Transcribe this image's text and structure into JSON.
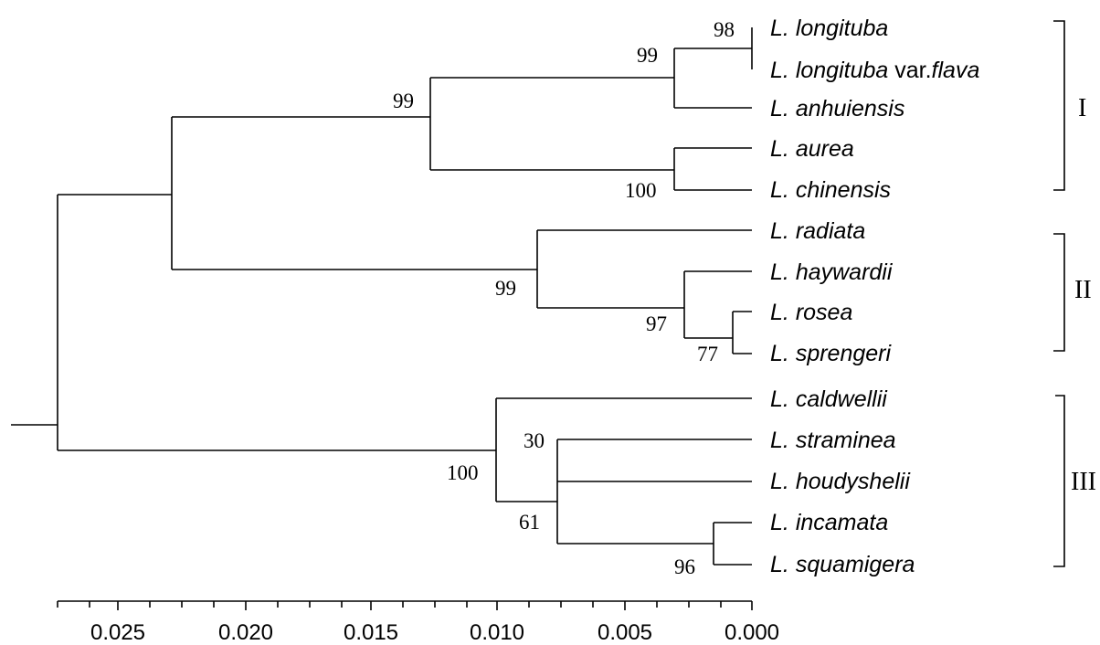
{
  "taxa": [
    {
      "id": "longituba",
      "genus": "L.",
      "epithet": "longituba",
      "suffix": "",
      "tail": ""
    },
    {
      "id": "longituba_flava",
      "genus": "L.",
      "epithet": "longituba",
      "suffix": " var.",
      "tail": "flava"
    },
    {
      "id": "anhuiensis",
      "genus": "L.",
      "epithet": "anhuiensis",
      "suffix": "",
      "tail": ""
    },
    {
      "id": "aurea",
      "genus": "L.",
      "epithet": "aurea",
      "suffix": "",
      "tail": ""
    },
    {
      "id": "chinensis",
      "genus": "L.",
      "epithet": "chinensis",
      "suffix": "",
      "tail": ""
    },
    {
      "id": "radiata",
      "genus": "L.",
      "epithet": "radiata",
      "suffix": "",
      "tail": ""
    },
    {
      "id": "haywardii",
      "genus": "L.",
      "epithet": "haywardii",
      "suffix": "",
      "tail": ""
    },
    {
      "id": "rosea",
      "genus": "L.",
      "epithet": "rosea",
      "suffix": "",
      "tail": ""
    },
    {
      "id": "sprengeri",
      "genus": "L.",
      "epithet": "sprengeri",
      "suffix": "",
      "tail": ""
    },
    {
      "id": "caldwellii",
      "genus": "L.",
      "epithet": "caldwellii",
      "suffix": "",
      "tail": ""
    },
    {
      "id": "straminea",
      "genus": "L.",
      "epithet": "straminea",
      "suffix": "",
      "tail": ""
    },
    {
      "id": "houdyshelii",
      "genus": "L.",
      "epithet": "houdyshelii",
      "suffix": "",
      "tail": ""
    },
    {
      "id": "incamata",
      "genus": "L.",
      "epithet": "incamata",
      "suffix": "",
      "tail": ""
    },
    {
      "id": "squamigera",
      "genus": "L.",
      "epithet": "squamigera",
      "suffix": "",
      "tail": ""
    }
  ],
  "bootstrap": {
    "longituba_pair": "98",
    "longituba_anhuiensis": "99",
    "clade_I": "99",
    "aurea_chinensis": "100",
    "clade_II": "99",
    "haywardii_group": "97",
    "rosea_sprengeri": "77",
    "clade_III": "100",
    "straminea_houdyshelii": "30",
    "straminea_group": "61",
    "incamata_squamigera": "96"
  },
  "clades": [
    {
      "id": "I",
      "label": "I"
    },
    {
      "id": "II",
      "label": "II"
    },
    {
      "id": "III",
      "label": "III"
    }
  ],
  "scale_axis": {
    "ticks": [
      "0.025",
      "0.020",
      "0.015",
      "0.010",
      "0.005",
      "0.000"
    ]
  }
}
